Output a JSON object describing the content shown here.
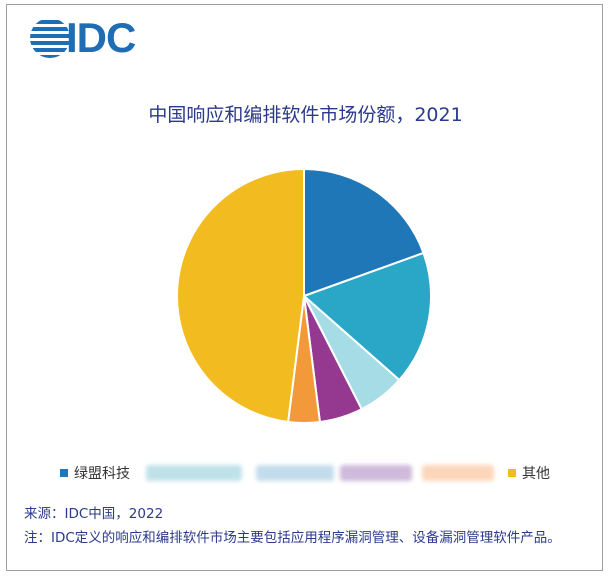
{
  "logo": {
    "text": "IDC",
    "color": "#1e6db5"
  },
  "chart_data": {
    "type": "pie",
    "title": "中国响应和编排软件市场份额，2021",
    "slices": [
      {
        "label": "绿盟科技",
        "value": 19.5,
        "color": "#1f77b8"
      },
      {
        "label": "",
        "value": 17.0,
        "color": "#2aa6c6"
      },
      {
        "label": "",
        "value": 6.0,
        "color": "#a6dce5"
      },
      {
        "label": "",
        "value": 5.5,
        "color": "#94398f"
      },
      {
        "label": "",
        "value": 4.0,
        "color": "#f29a3a"
      },
      {
        "label": "其他",
        "value": 48.0,
        "color": "#f2bb20"
      }
    ],
    "start_angle_deg": 0,
    "direction": "clockwise",
    "legend_position": "bottom"
  },
  "legend_blur_colors": [
    "#b9dfe8",
    "#bdd9ea",
    "#c9b3d6",
    "#fbd2b3"
  ],
  "notes": {
    "source": "来源：IDC中国，2022",
    "footnote": "注：IDC定义的响应和编排软件市场主要包括应用程序漏洞管理、设备漏洞管理软件产品。"
  }
}
